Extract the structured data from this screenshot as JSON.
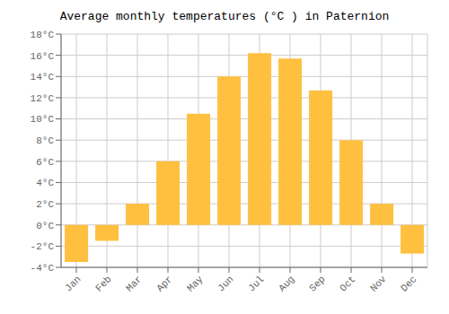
{
  "chart_data": {
    "type": "bar",
    "title": "Average monthly temperatures (°C ) in Paternion",
    "categories": [
      "Jan",
      "Feb",
      "Mar",
      "Apr",
      "May",
      "Jun",
      "Jul",
      "Aug",
      "Sep",
      "Oct",
      "Nov",
      "Dec"
    ],
    "values": [
      -3.5,
      -1.5,
      2.0,
      6.0,
      10.5,
      14.0,
      16.2,
      15.7,
      12.7,
      8.0,
      2.0,
      -2.7
    ],
    "color": "#FFC040",
    "ylim": [
      -4,
      18
    ],
    "yticks": [
      {
        "value": -4,
        "label": "-4°C"
      },
      {
        "value": -2,
        "label": "-2°C"
      },
      {
        "value": 0,
        "label": "0°C"
      },
      {
        "value": 2,
        "label": "2°C"
      },
      {
        "value": 4,
        "label": "4°C"
      },
      {
        "value": 6,
        "label": "6°C"
      },
      {
        "value": 8,
        "label": "8°C"
      },
      {
        "value": 10,
        "label": "10°C"
      },
      {
        "value": 12,
        "label": "12°C"
      },
      {
        "value": 14,
        "label": "14°C"
      },
      {
        "value": 16,
        "label": "16°C"
      },
      {
        "value": 18,
        "label": "18°C"
      }
    ],
    "grid": true
  }
}
